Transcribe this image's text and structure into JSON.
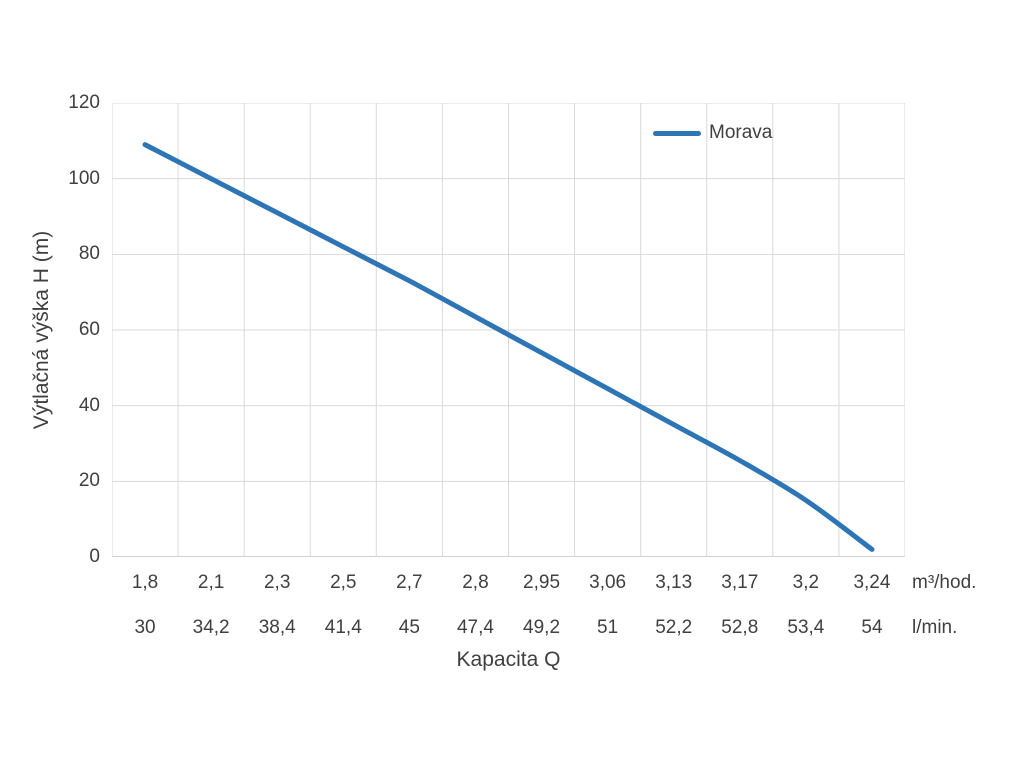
{
  "chart_data": {
    "type": "line",
    "title": "",
    "xlabel": "Kapacita Q",
    "ylabel": "Výtlačná výška H (m)",
    "ylim": [
      0,
      120
    ],
    "yticks": [
      0,
      20,
      40,
      60,
      80,
      100,
      120
    ],
    "grid": true,
    "legend_position": "top-right",
    "x_axis_rows": [
      {
        "unit": "m³/hod.",
        "labels": [
          "1,8",
          "2,1",
          "2,3",
          "2,5",
          "2,7",
          "2,8",
          "2,95",
          "3,06",
          "3,13",
          "3,17",
          "3,2",
          "3,24"
        ]
      },
      {
        "unit": "l/min.",
        "labels": [
          "30",
          "34,2",
          "38,4",
          "41,4",
          "45",
          "47,4",
          "49,2",
          "51",
          "52,2",
          "52,8",
          "53,4",
          "54"
        ]
      }
    ],
    "series": [
      {
        "name": "Morava",
        "color": "#2e75b6",
        "values": [
          109,
          100,
          91,
          82,
          73,
          63.5,
          54,
          44.5,
          35,
          25.5,
          15,
          2
        ]
      }
    ],
    "colors": {
      "gridline": "#d9d9d9",
      "axis_line": "#a6a6a6",
      "text": "#404040"
    }
  }
}
